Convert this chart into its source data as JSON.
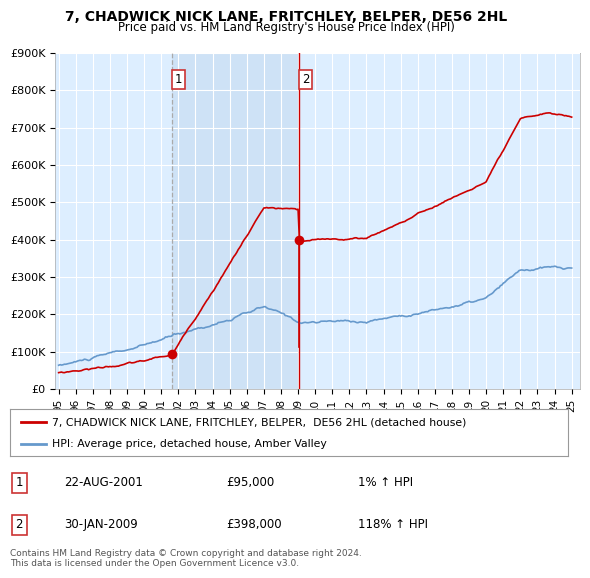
{
  "title": "7, CHADWICK NICK LANE, FRITCHLEY, BELPER, DE56 2HL",
  "subtitle": "Price paid vs. HM Land Registry's House Price Index (HPI)",
  "legend_line1": "7, CHADWICK NICK LANE, FRITCHLEY, BELPER,  DE56 2HL (detached house)",
  "legend_line2": "HPI: Average price, detached house, Amber Valley",
  "table_rows": [
    {
      "num": "1",
      "date": "22-AUG-2001",
      "price": "£95,000",
      "hpi": "1% ↑ HPI"
    },
    {
      "num": "2",
      "date": "30-JAN-2009",
      "price": "£398,000",
      "hpi": "118% ↑ HPI"
    }
  ],
  "footnote": "Contains HM Land Registry data © Crown copyright and database right 2024.\nThis data is licensed under the Open Government Licence v3.0.",
  "sale1_year": 2001.64,
  "sale1_price": 95000,
  "sale2_year": 2009.08,
  "sale2_price": 398000,
  "hpi_color": "#6699cc",
  "price_color": "#cc0000",
  "sale_dot_color": "#cc0000",
  "vline1_color": "#aaaaaa",
  "vline2_color": "#cc0000",
  "shade_color": "#cce0f5",
  "bg_color": "#ddeeff",
  "plot_bg": "#ffffff",
  "ylim": [
    0,
    900000
  ],
  "xlim_start": 1994.8,
  "xlim_end": 2025.5,
  "ytick_values": [
    0,
    100000,
    200000,
    300000,
    400000,
    500000,
    600000,
    700000,
    800000,
    900000
  ],
  "ytick_labels": [
    "£0",
    "£100K",
    "£200K",
    "£300K",
    "£400K",
    "£500K",
    "£600K",
    "£700K",
    "£800K",
    "£900K"
  ],
  "xtick_years": [
    1995,
    1996,
    1997,
    1998,
    1999,
    2000,
    2001,
    2002,
    2003,
    2004,
    2005,
    2006,
    2007,
    2008,
    2009,
    2010,
    2011,
    2012,
    2013,
    2014,
    2015,
    2016,
    2017,
    2018,
    2019,
    2020,
    2021,
    2022,
    2023,
    2024,
    2025
  ]
}
